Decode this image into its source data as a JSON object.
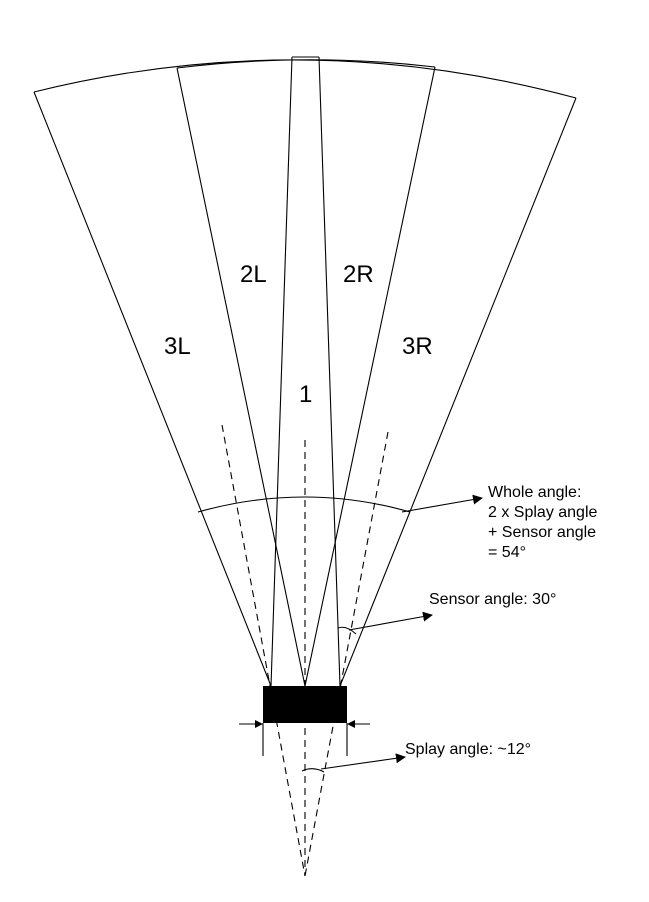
{
  "zones": {
    "z3L": "3L",
    "z2L": "2L",
    "z1": "1",
    "z2R": "2R",
    "z3R": "3R"
  },
  "annotations": {
    "whole_angle": [
      "Whole angle:",
      "2 x Splay angle",
      "+ Sensor angle",
      "= 54°"
    ],
    "sensor_angle": "Sensor angle: 30°",
    "splay_angle": "Splay angle: ~12°"
  }
}
